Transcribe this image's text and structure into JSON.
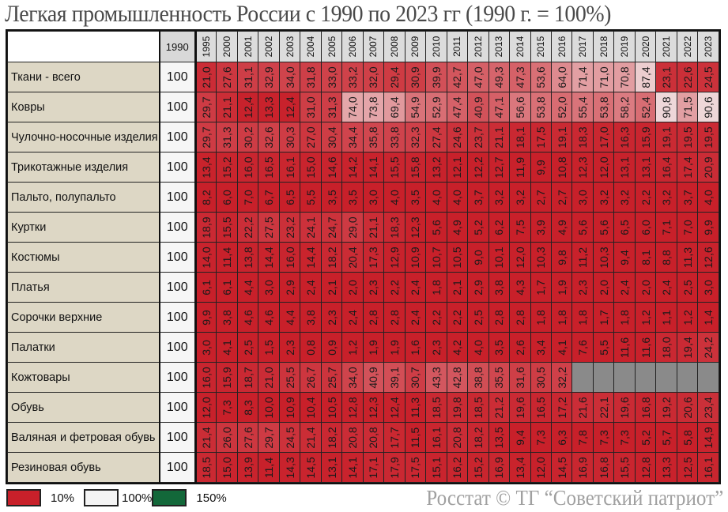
{
  "title": "Легкая промышленность России с 1990 по 2023 гг (1990 г. = 100%)",
  "credit": "Росстат © ТГ “Советский патриот”",
  "colors": {
    "low": "#c8202a",
    "mid": "#f4f4f4",
    "high": "#13683a",
    "na": "#8a8a8a"
  },
  "legend": [
    {
      "label": "10%",
      "color": "#c8202a"
    },
    {
      "label": "100%",
      "color": "#f4f4f4"
    },
    {
      "label": "150%",
      "color": "#13683a"
    }
  ],
  "chart_data": {
    "type": "heatmap",
    "title": "Легкая промышленность России с 1990 по 2023 гг (1990 г. = 100%)",
    "base_year": "1990",
    "base_value": "100",
    "years": [
      "1995",
      "2000",
      "2001",
      "2002",
      "2003",
      "2004",
      "2005",
      "2006",
      "2007",
      "2008",
      "2009",
      "2010",
      "2011",
      "2012",
      "2013",
      "2014",
      "2015",
      "2016",
      "2017",
      "2018",
      "2019",
      "2020",
      "2021",
      "2022",
      "2023"
    ],
    "rows": [
      {
        "name": "Ткани - всего",
        "values": [
          "21,0",
          "27,6",
          "31,1",
          "32,9",
          "34,0",
          "31,8",
          "33,0",
          "33,2",
          "32,0",
          "29,4",
          "30,9",
          "39,9",
          "42,7",
          "47,0",
          "49,3",
          "47,3",
          "53,6",
          "64,0",
          "71,4",
          "71,0",
          "70,8",
          "87,4",
          "23,1",
          "22,6",
          "24,5"
        ]
      },
      {
        "name": "Ковры",
        "values": [
          "29,7",
          "21,1",
          "12,4",
          "13,3",
          "12,4",
          "31,0",
          "31,3",
          "74,0",
          "73,8",
          "69,4",
          "54,9",
          "52,9",
          "47,4",
          "40,9",
          "47,1",
          "56,6",
          "53,8",
          "52,0",
          "55,4",
          "53,8",
          "58,2",
          "52,4",
          "90,8",
          "71,5",
          "90,6"
        ]
      },
      {
        "name": "Чулочно-носочные изделия",
        "values": [
          "29,7",
          "31,3",
          "30,2",
          "32,6",
          "30,3",
          "27,0",
          "30,4",
          "34,4",
          "35,8",
          "33,8",
          "32,3",
          "27,4",
          "24,6",
          "23,7",
          "21,1",
          "18,1",
          "17,5",
          "19,1",
          "18,3",
          "17,0",
          "16,3",
          "15,9",
          "19,1",
          "19,5",
          "19,5"
        ]
      },
      {
        "name": "Трикотажные изделия",
        "values": [
          "13,4",
          "15,2",
          "16,0",
          "16,5",
          "16,1",
          "15,0",
          "14,6",
          "14,2",
          "14,1",
          "15,5",
          "15,8",
          "13,2",
          "12,1",
          "12,2",
          "12,7",
          "11,9",
          "9,9",
          "10,8",
          "12,3",
          "12,0",
          "13,1",
          "13,1",
          "16,4",
          "17,4",
          "20,9"
        ]
      },
      {
        "name": "Пальто, полупальто",
        "values": [
          "8,2",
          "6,0",
          "7,0",
          "6,7",
          "6,5",
          "5,5",
          "3,5",
          "3,5",
          "3,0",
          "4,0",
          "3,5",
          "4,0",
          "4,0",
          "3,7",
          "3,2",
          "3,2",
          "2,7",
          "2,7",
          "3,0",
          "3,2",
          "3,2",
          "2,2",
          "3,2",
          "3,7",
          "4,0"
        ]
      },
      {
        "name": "Куртки",
        "values": [
          "18,9",
          "15,5",
          "22,2",
          "27,5",
          "23,2",
          "24,1",
          "24,7",
          "29,0",
          "21,1",
          "18,3",
          "12,3",
          "5,6",
          "4,9",
          "5,2",
          "6,2",
          "7,5",
          "3,9",
          "4,9",
          "5,6",
          "5,6",
          "6,5",
          "6,0",
          "7,1",
          "7,0",
          "9,9"
        ]
      },
      {
        "name": "Костюмы",
        "values": [
          "14,0",
          "11,4",
          "13,8",
          "14,4",
          "16,0",
          "14,4",
          "18,2",
          "20,4",
          "17,3",
          "12,9",
          "10,9",
          "10,7",
          "10,5",
          "9,0",
          "10,1",
          "12,0",
          "10,3",
          "9,8",
          "11,2",
          "10,3",
          "9,4",
          "8,1",
          "8,8",
          "11,3",
          "12,6"
        ]
      },
      {
        "name": "Платья",
        "values": [
          "6,1",
          "6,1",
          "4,4",
          "3,0",
          "2,9",
          "2,4",
          "2,1",
          "2,0",
          "2,3",
          "2,2",
          "2,4",
          "1,8",
          "2,1",
          "2,9",
          "3,8",
          "4,3",
          "1,7",
          "1,9",
          "2,3",
          "2,0",
          "2,4",
          "2,0",
          "2,4",
          "2,5",
          "3,0"
        ]
      },
      {
        "name": "Сорочки верхние",
        "values": [
          "9,9",
          "3,8",
          "4,6",
          "4,6",
          "4,4",
          "3,8",
          "2,3",
          "2,4",
          "2,8",
          "2,8",
          "2,4",
          "2,2",
          "2,2",
          "2,5",
          "2,8",
          "2,8",
          "1,8",
          "1,8",
          "1,8",
          "1,7",
          "1,8",
          "1,2",
          "1,1",
          "1,2",
          "1,4"
        ]
      },
      {
        "name": "Палатки",
        "values": [
          "3,0",
          "4,1",
          "2,5",
          "1,5",
          "2,3",
          "0,8",
          "0,9",
          "1,2",
          "1,9",
          "1,9",
          "1,6",
          "2,3",
          "4,2",
          "4,0",
          "3,5",
          "2,6",
          "3,4",
          "4,1",
          "7,6",
          "5,5",
          "11,6",
          "11,6",
          "18,0",
          "19,4",
          "24,2"
        ]
      },
      {
        "name": "Кожтовары",
        "values": [
          "16,0",
          "15,9",
          "18,7",
          "21,0",
          "25,5",
          "26,7",
          "25,7",
          "34,0",
          "40,9",
          "39,1",
          "30,7",
          "43,3",
          "42,8",
          "38,8",
          "35,5",
          "31,6",
          "30,5",
          "32,2",
          null,
          null,
          null,
          null,
          null,
          null,
          null
        ]
      },
      {
        "name": "Обувь",
        "values": [
          "12,0",
          "7,3",
          "8,3",
          "10,0",
          "10,9",
          "10,4",
          "10,5",
          "12,8",
          "12,3",
          "12,4",
          "11,3",
          "18,5",
          "19,8",
          "18,5",
          "21,2",
          "19,6",
          "16,5",
          "17,2",
          "21,6",
          "22,1",
          "19,6",
          "16,8",
          "19,2",
          "20,6",
          "23,4"
        ]
      },
      {
        "name": "Валяная и фетровая обувь",
        "values": [
          "21,4",
          "26,0",
          "27,6",
          "29,7",
          "24,5",
          "21,4",
          "18,2",
          "20,8",
          "20,8",
          "17,7",
          "11,5",
          "16,1",
          "20,8",
          "18,2",
          "13,5",
          "9,4",
          "7,3",
          "6,3",
          "7,8",
          "7,3",
          "7,3",
          "5,2",
          "5,7",
          "5,8",
          "14,9"
        ]
      },
      {
        "name": "Резиновая обувь",
        "values": [
          "18,5",
          "15,0",
          "13,9",
          "11,4",
          "14,3",
          "14,5",
          "13,1",
          "14,1",
          "17,1",
          "17,9",
          "17,5",
          "15,1",
          "16,2",
          "15,2",
          "16,9",
          "13,4",
          "12,0",
          "14,5",
          "16,9",
          "16,8",
          "15,5",
          "12,8",
          "13,3",
          "12,5",
          "16,1"
        ]
      }
    ],
    "color_scale": {
      "10": "#c8202a",
      "100": "#f4f4f4",
      "150": "#13683a"
    },
    "note": "Years 1995..2023 columns as shown; grey cells = no data"
  }
}
